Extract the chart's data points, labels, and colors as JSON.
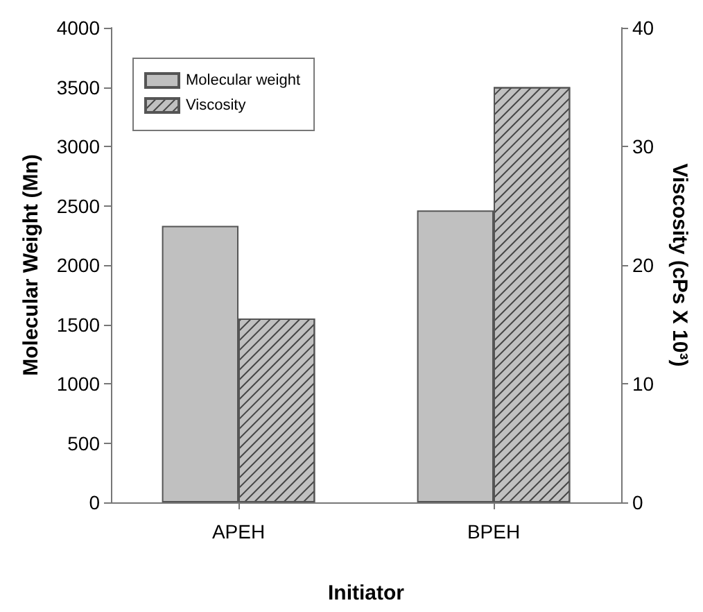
{
  "chart_data": {
    "type": "bar",
    "xlabel": "Initiator",
    "ylabel": "Molecular Weight (Mn)",
    "y2label": "Viscosity (cPs X 10³)",
    "categories": [
      "APEH",
      "BPEH"
    ],
    "series": [
      {
        "name": "Molecular weight",
        "color": "#c0c0c0",
        "values": [
          2330,
          2460
        ]
      },
      {
        "name": "Viscosity",
        "color": "#c0c0c0",
        "values": [
          15.5,
          35
        ],
        "axis": "y2"
      }
    ],
    "ylim": [
      0,
      4000
    ],
    "yticks": [
      0,
      500,
      1000,
      1500,
      2000,
      2500,
      3000,
      3500,
      4000
    ],
    "y2lim": [
      0,
      40
    ],
    "y2ticks": [
      0,
      10,
      20,
      30,
      40
    ],
    "grid": false,
    "legend": "top left"
  }
}
